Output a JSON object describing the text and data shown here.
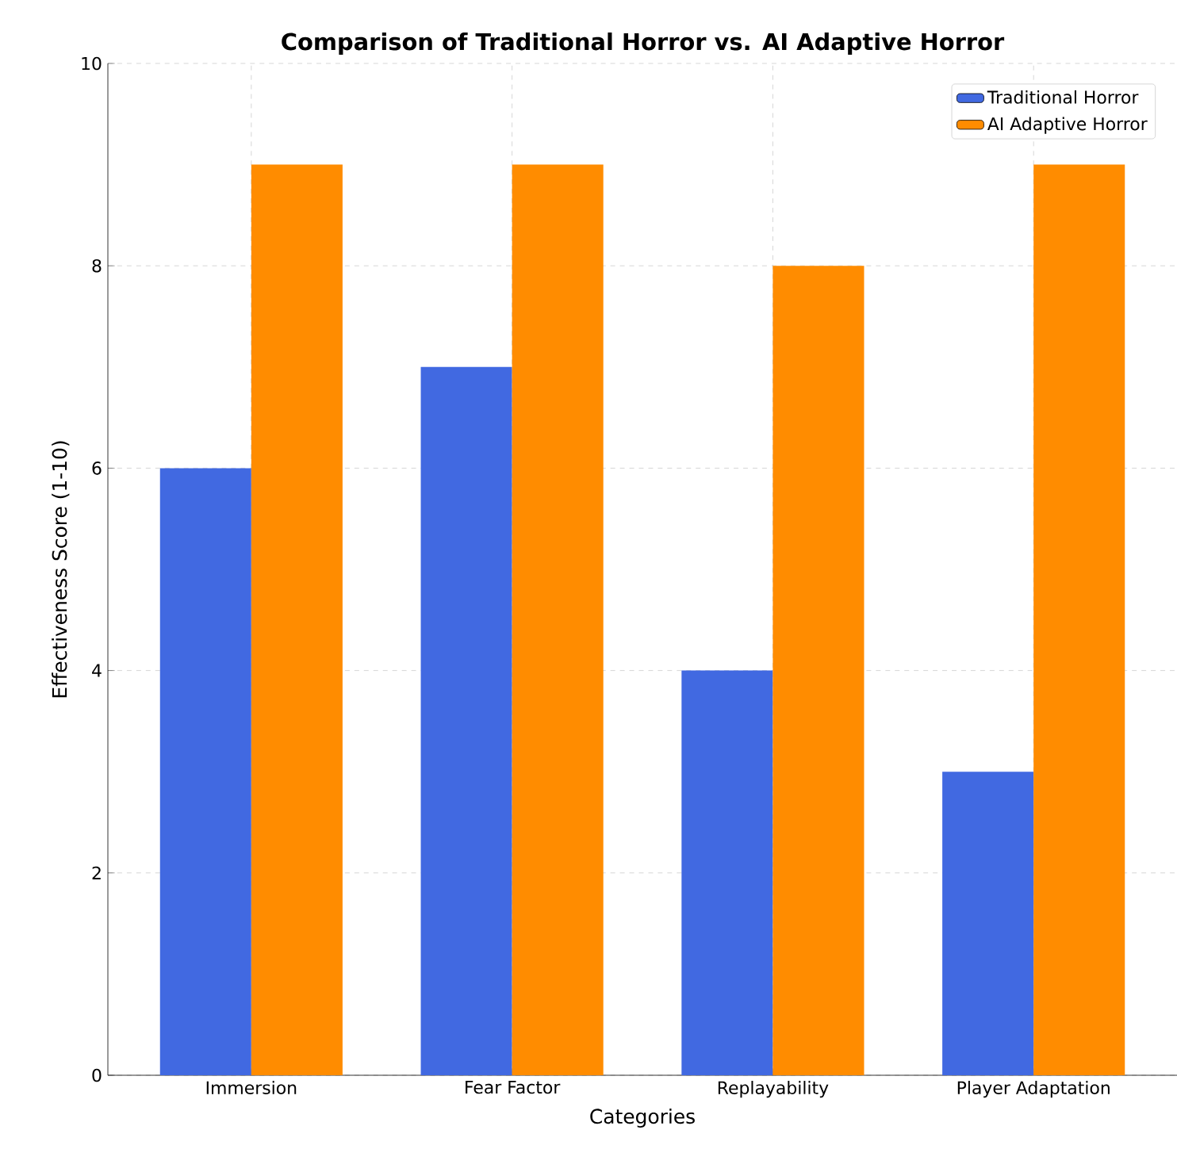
{
  "chart_data": {
    "type": "bar",
    "title": "Comparison of Traditional Horror vs. AI Adaptive Horror",
    "xlabel": "Categories",
    "ylabel": "Effectiveness Score (1-10)",
    "categories": [
      "Immersion",
      "Fear Factor",
      "Replayability",
      "Player Adaptation"
    ],
    "series": [
      {
        "name": "Traditional Horror",
        "color": "#4169e1",
        "values": [
          6,
          7,
          4,
          3
        ]
      },
      {
        "name": "AI Adaptive Horror",
        "color": "#ff8c00",
        "values": [
          9,
          9,
          8,
          9
        ]
      }
    ],
    "ylim": [
      0,
      10
    ],
    "yticks": [
      0,
      2,
      4,
      6,
      8,
      10
    ],
    "grid": true,
    "legend": "top right"
  }
}
